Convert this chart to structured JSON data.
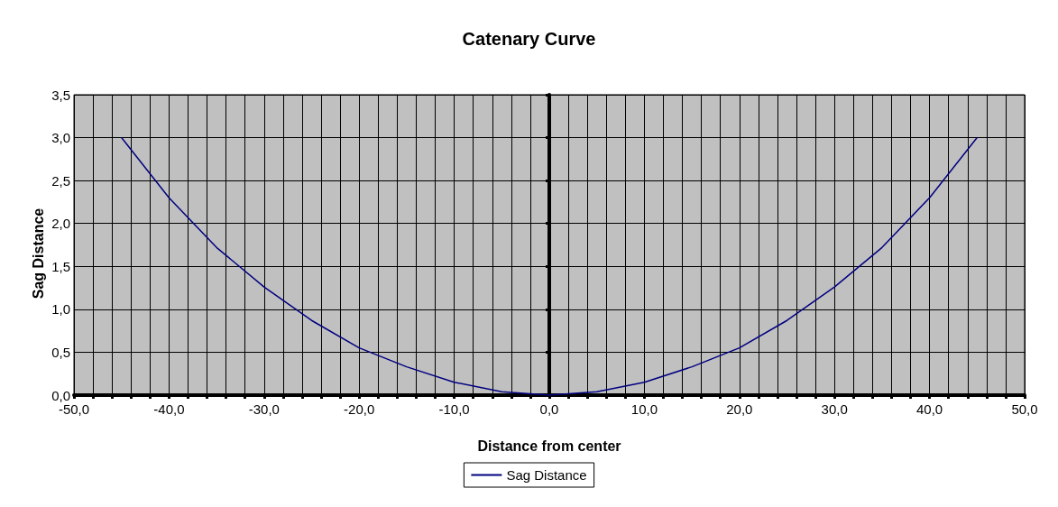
{
  "chart_data": {
    "type": "line",
    "title": "Catenary Curve",
    "xlabel": "Distance from center",
    "ylabel": "Sag Distance",
    "x": [
      -45,
      -40,
      -35,
      -30,
      -25,
      -20,
      -15,
      -10,
      -5,
      0,
      5,
      10,
      15,
      20,
      25,
      30,
      35,
      40,
      45
    ],
    "series": [
      {
        "name": "Sag Distance",
        "color": "#000080",
        "values": [
          3.0,
          2.3,
          1.72,
          1.26,
          0.87,
          0.55,
          0.33,
          0.15,
          0.04,
          0.0,
          0.04,
          0.15,
          0.33,
          0.55,
          0.87,
          1.26,
          1.72,
          2.3,
          3.0
        ]
      }
    ],
    "xlim": [
      -50,
      50
    ],
    "xticks": [
      {
        "value": -50,
        "label": "-50,0"
      },
      {
        "value": -48,
        "label": null
      },
      {
        "value": -46,
        "label": null
      },
      {
        "value": -44,
        "label": null
      },
      {
        "value": -42,
        "label": null
      },
      {
        "value": -40,
        "label": "-40,0"
      },
      {
        "value": -38,
        "label": null
      },
      {
        "value": -36,
        "label": null
      },
      {
        "value": -34,
        "label": null
      },
      {
        "value": -32,
        "label": null
      },
      {
        "value": -30,
        "label": "-30,0"
      },
      {
        "value": -28,
        "label": null
      },
      {
        "value": -26,
        "label": null
      },
      {
        "value": -24,
        "label": null
      },
      {
        "value": -22,
        "label": null
      },
      {
        "value": -20,
        "label": "-20,0"
      },
      {
        "value": -18,
        "label": null
      },
      {
        "value": -16,
        "label": null
      },
      {
        "value": -14,
        "label": null
      },
      {
        "value": -12,
        "label": null
      },
      {
        "value": -10,
        "label": "-10,0"
      },
      {
        "value": -8,
        "label": null
      },
      {
        "value": -6,
        "label": null
      },
      {
        "value": -4,
        "label": null
      },
      {
        "value": -2,
        "label": null
      },
      {
        "value": 0,
        "label": "0,0"
      },
      {
        "value": 2,
        "label": null
      },
      {
        "value": 4,
        "label": null
      },
      {
        "value": 6,
        "label": null
      },
      {
        "value": 8,
        "label": null
      },
      {
        "value": 10,
        "label": "10,0"
      },
      {
        "value": 12,
        "label": null
      },
      {
        "value": 14,
        "label": null
      },
      {
        "value": 16,
        "label": null
      },
      {
        "value": 18,
        "label": null
      },
      {
        "value": 20,
        "label": "20,0"
      },
      {
        "value": 22,
        "label": null
      },
      {
        "value": 24,
        "label": null
      },
      {
        "value": 26,
        "label": null
      },
      {
        "value": 28,
        "label": null
      },
      {
        "value": 30,
        "label": "30,0"
      },
      {
        "value": 32,
        "label": null
      },
      {
        "value": 34,
        "label": null
      },
      {
        "value": 36,
        "label": null
      },
      {
        "value": 38,
        "label": null
      },
      {
        "value": 40,
        "label": "40,0"
      },
      {
        "value": 42,
        "label": null
      },
      {
        "value": 44,
        "label": null
      },
      {
        "value": 46,
        "label": null
      },
      {
        "value": 48,
        "label": null
      },
      {
        "value": 50,
        "label": "50,0"
      }
    ],
    "ylim": [
      0,
      3.5
    ],
    "yticks": [
      {
        "value": 0,
        "label": "0,0"
      },
      {
        "value": 0.5,
        "label": "0,5"
      },
      {
        "value": 1,
        "label": "1,0"
      },
      {
        "value": 1.5,
        "label": "1,5"
      },
      {
        "value": 2,
        "label": "2,0"
      },
      {
        "value": 2.5,
        "label": "2,5"
      },
      {
        "value": 3,
        "label": "3,0"
      },
      {
        "value": 3.5,
        "label": "3,5"
      }
    ],
    "grid": true,
    "legend": "bottom",
    "marker": "none",
    "line_style": "solid"
  }
}
